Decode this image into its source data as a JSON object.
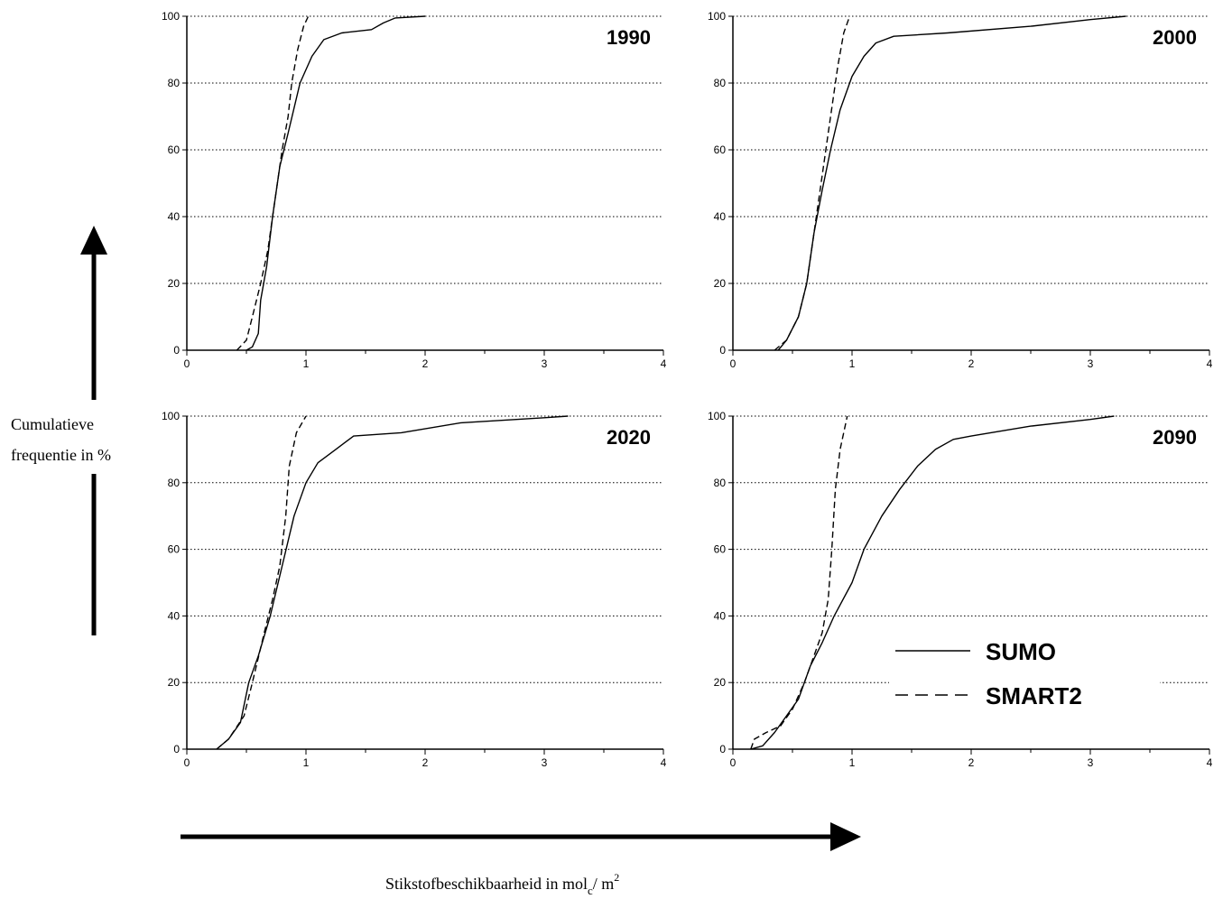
{
  "figure": {
    "y_caption_line1": "Cumulatieve",
    "y_caption_line2": "frequentie in %",
    "x_caption_main": "Stikstofbeschikbaarheid in mol",
    "x_caption_sub": "c",
    "x_caption_unit": "/ m",
    "x_caption_sup": "2"
  },
  "legend": {
    "entries": [
      {
        "label": "SUMO",
        "style": "solid"
      },
      {
        "label": "SMART2",
        "style": "dashed"
      }
    ]
  },
  "colors": {
    "line": "#000000",
    "background": "#ffffff"
  },
  "chart_data": [
    {
      "type": "line",
      "title": "1990",
      "xlim": [
        0,
        4
      ],
      "ylim": [
        0,
        100
      ],
      "xticks": [
        "0",
        "1",
        "2",
        "3",
        "4"
      ],
      "yticks": [
        "0",
        "20",
        "40",
        "60",
        "80",
        "100"
      ],
      "grid": "horizontal-dotted",
      "series": [
        {
          "name": "SUMO",
          "style": "solid",
          "points": [
            [
              0.5,
              0
            ],
            [
              0.55,
              1
            ],
            [
              0.6,
              5
            ],
            [
              0.62,
              15
            ],
            [
              0.67,
              25
            ],
            [
              0.72,
              40
            ],
            [
              0.78,
              55
            ],
            [
              0.85,
              65
            ],
            [
              0.95,
              80
            ],
            [
              1.05,
              88
            ],
            [
              1.15,
              93
            ],
            [
              1.3,
              95
            ],
            [
              1.55,
              96
            ],
            [
              1.65,
              98
            ],
            [
              1.75,
              99.5
            ],
            [
              2.0,
              100
            ]
          ]
        },
        {
          "name": "SMART2",
          "style": "dashed",
          "points": [
            [
              0.42,
              0
            ],
            [
              0.5,
              3
            ],
            [
              0.55,
              10
            ],
            [
              0.62,
              20
            ],
            [
              0.68,
              30
            ],
            [
              0.72,
              40
            ],
            [
              0.76,
              50
            ],
            [
              0.8,
              60
            ],
            [
              0.85,
              70
            ],
            [
              0.88,
              80
            ],
            [
              0.93,
              90
            ],
            [
              0.98,
              97
            ],
            [
              1.02,
              100
            ]
          ]
        }
      ]
    },
    {
      "type": "line",
      "title": "2000",
      "xlim": [
        0,
        4
      ],
      "ylim": [
        0,
        100
      ],
      "xticks": [
        "0",
        "1",
        "2",
        "3",
        "4"
      ],
      "yticks": [
        "0",
        "20",
        "40",
        "60",
        "80",
        "100"
      ],
      "grid": "horizontal-dotted",
      "series": [
        {
          "name": "SUMO",
          "style": "solid",
          "points": [
            [
              0.38,
              0
            ],
            [
              0.45,
              3
            ],
            [
              0.55,
              10
            ],
            [
              0.62,
              20
            ],
            [
              0.68,
              35
            ],
            [
              0.75,
              48
            ],
            [
              0.82,
              60
            ],
            [
              0.9,
              72
            ],
            [
              1.0,
              82
            ],
            [
              1.1,
              88
            ],
            [
              1.2,
              92
            ],
            [
              1.35,
              94
            ],
            [
              1.8,
              95
            ],
            [
              2.5,
              97
            ],
            [
              3.0,
              99
            ],
            [
              3.3,
              100
            ]
          ]
        },
        {
          "name": "SMART2",
          "style": "dashed",
          "points": [
            [
              0.35,
              0
            ],
            [
              0.45,
              3
            ],
            [
              0.55,
              10
            ],
            [
              0.62,
              20
            ],
            [
              0.68,
              35
            ],
            [
              0.74,
              50
            ],
            [
              0.8,
              65
            ],
            [
              0.84,
              75
            ],
            [
              0.88,
              85
            ],
            [
              0.93,
              95
            ],
            [
              0.98,
              100
            ]
          ]
        }
      ]
    },
    {
      "type": "line",
      "title": "2020",
      "xlim": [
        0,
        4
      ],
      "ylim": [
        0,
        100
      ],
      "xticks": [
        "0",
        "1",
        "2",
        "3",
        "4"
      ],
      "yticks": [
        "0",
        "20",
        "40",
        "60",
        "80",
        "100"
      ],
      "grid": "horizontal-dotted",
      "series": [
        {
          "name": "SUMO",
          "style": "solid",
          "points": [
            [
              0.25,
              0
            ],
            [
              0.35,
              3
            ],
            [
              0.45,
              8
            ],
            [
              0.52,
              20
            ],
            [
              0.6,
              28
            ],
            [
              0.7,
              40
            ],
            [
              0.8,
              55
            ],
            [
              0.9,
              70
            ],
            [
              1.0,
              80
            ],
            [
              1.1,
              86
            ],
            [
              1.25,
              90
            ],
            [
              1.4,
              94
            ],
            [
              1.8,
              95
            ],
            [
              2.3,
              98
            ],
            [
              3.0,
              99.5
            ],
            [
              3.2,
              100
            ]
          ]
        },
        {
          "name": "SMART2",
          "style": "dashed",
          "points": [
            [
              0.25,
              0
            ],
            [
              0.35,
              3
            ],
            [
              0.48,
              10
            ],
            [
              0.55,
              20
            ],
            [
              0.65,
              35
            ],
            [
              0.72,
              45
            ],
            [
              0.78,
              55
            ],
            [
              0.83,
              70
            ],
            [
              0.86,
              85
            ],
            [
              0.92,
              95
            ],
            [
              1.0,
              100
            ]
          ]
        }
      ]
    },
    {
      "type": "line",
      "title": "2090",
      "xlim": [
        0,
        4
      ],
      "ylim": [
        0,
        100
      ],
      "xticks": [
        "0",
        "1",
        "2",
        "3",
        "4"
      ],
      "yticks": [
        "0",
        "20",
        "40",
        "60",
        "80",
        "100"
      ],
      "grid": "horizontal-dotted",
      "legend": "bottom-right",
      "series": [
        {
          "name": "SUMO",
          "style": "solid",
          "points": [
            [
              0.15,
              0
            ],
            [
              0.25,
              1
            ],
            [
              0.35,
              5
            ],
            [
              0.45,
              10
            ],
            [
              0.55,
              15
            ],
            [
              0.65,
              25
            ],
            [
              0.75,
              32
            ],
            [
              0.85,
              40
            ],
            [
              1.0,
              50
            ],
            [
              1.1,
              60
            ],
            [
              1.25,
              70
            ],
            [
              1.4,
              78
            ],
            [
              1.55,
              85
            ],
            [
              1.7,
              90
            ],
            [
              1.85,
              93
            ],
            [
              2.0,
              94
            ],
            [
              2.5,
              97
            ],
            [
              3.0,
              99
            ],
            [
              3.2,
              100
            ]
          ]
        },
        {
          "name": "SMART2",
          "style": "dashed",
          "points": [
            [
              0.15,
              0
            ],
            [
              0.18,
              3
            ],
            [
              0.28,
              5
            ],
            [
              0.4,
              7
            ],
            [
              0.5,
              12
            ],
            [
              0.6,
              20
            ],
            [
              0.68,
              28
            ],
            [
              0.75,
              35
            ],
            [
              0.8,
              45
            ],
            [
              0.83,
              60
            ],
            [
              0.86,
              78
            ],
            [
              0.9,
              90
            ],
            [
              0.96,
              100
            ]
          ]
        }
      ]
    }
  ]
}
